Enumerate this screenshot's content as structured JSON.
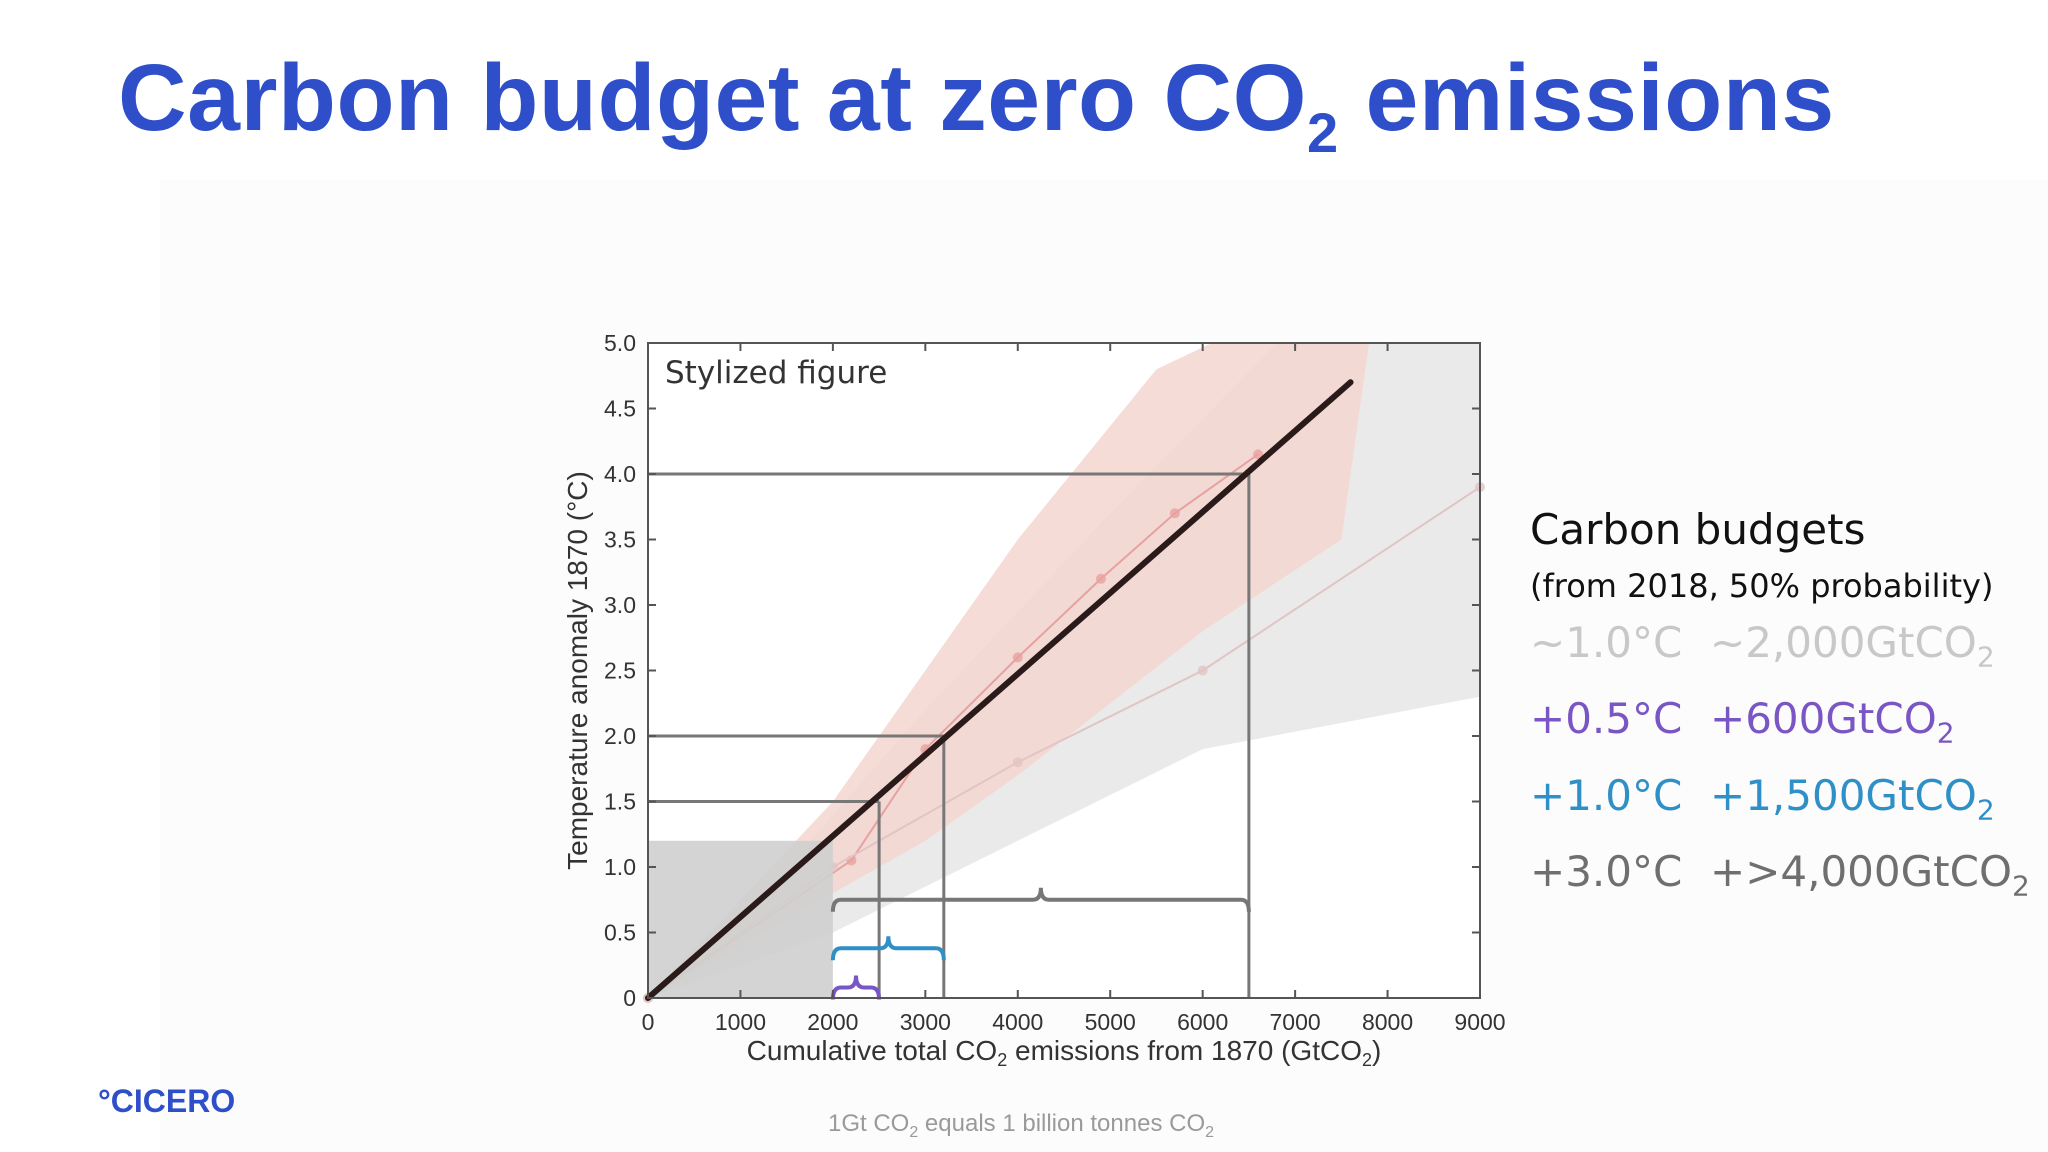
{
  "title": {
    "prefix": "Carbon budget at zero CO",
    "sub": "2",
    "suffix": " emissions"
  },
  "logo": "°CICERO",
  "footnote": {
    "a": "1Gt CO",
    "b": "2",
    "c": " equals 1 billion tonnes CO",
    "d": "2"
  },
  "legend": {
    "title": "Carbon budgets",
    "subtitle": "(from 2018, 50% probability)",
    "rows": [
      {
        "temp": "~1.0°C",
        "amount": "~2,000GtCO",
        "sub": "2",
        "color": "#c8c8c8"
      },
      {
        "temp": "+0.5°C",
        "amount": "+600GtCO",
        "sub": "2",
        "color": "#7a55c4"
      },
      {
        "temp": "+1.0°C",
        "amount": "+1,500GtCO",
        "sub": "2",
        "color": "#2f8fc7"
      },
      {
        "temp": "+3.0°C",
        "amount": "+>4,000GtCO",
        "sub": "2",
        "color": "#6f6f6f"
      }
    ]
  },
  "chart_data": {
    "type": "line",
    "annotation": "Stylized figure",
    "xlabel": {
      "a": "Cumulative total CO",
      "b": "2",
      "c": " emissions from 1870 (GtCO",
      "d": "2",
      "e": ")"
    },
    "ylabel": "Temperature anomaly 1870 (°C)",
    "xlim": [
      0,
      9000
    ],
    "ylim": [
      0,
      5
    ],
    "xticks": [
      0,
      1000,
      2000,
      3000,
      4000,
      5000,
      6000,
      7000,
      8000,
      9000
    ],
    "xtick_labels": [
      "0",
      "1000",
      "2000",
      "3000",
      "4000",
      "5000",
      "6000",
      "7000",
      "8000",
      "9000"
    ],
    "yticks": [
      0,
      0.5,
      1.0,
      1.5,
      2.0,
      2.5,
      3.0,
      3.5,
      4.0,
      4.5,
      5.0
    ],
    "ytick_labels": [
      "0",
      "0.5",
      "1.0",
      "1.5",
      "2.0",
      "2.5",
      "3.0",
      "3.5",
      "4.0",
      "4.5",
      "5.0"
    ],
    "series": [
      {
        "x": [
          0,
          7600
        ],
        "y": [
          0,
          4.7
        ],
        "color": "#2a1a1a"
      }
    ],
    "background_series": [
      {
        "x": [
          0,
          2200,
          3000,
          4000,
          4900,
          5700,
          6600
        ],
        "y": [
          0,
          1.05,
          1.9,
          2.6,
          3.2,
          3.7,
          4.15
        ],
        "color": "#e8a0a0"
      },
      {
        "x": [
          0,
          2000,
          4000,
          6000,
          9000
        ],
        "y": [
          0,
          1.0,
          1.8,
          2.5,
          3.9
        ],
        "color": "#e2c4c4"
      }
    ],
    "bands": [
      {
        "lower": [
          [
            0,
            0
          ],
          [
            2000,
            0.5
          ],
          [
            4000,
            1.2
          ],
          [
            6000,
            1.9
          ],
          [
            9000,
            2.3
          ]
        ],
        "upper": [
          [
            0,
            0
          ],
          [
            1500,
            1.0
          ],
          [
            3000,
            2.2
          ],
          [
            5000,
            3.7
          ],
          [
            6800,
            5.0
          ],
          [
            9000,
            5.0
          ]
        ],
        "color": "#e6e6e6"
      },
      {
        "lower": [
          [
            0,
            0
          ],
          [
            2000,
            0.8
          ],
          [
            3000,
            1.2
          ],
          [
            4000,
            1.7
          ],
          [
            6000,
            2.8
          ],
          [
            7500,
            3.5
          ]
        ],
        "upper": [
          [
            0,
            0
          ],
          [
            2000,
            1.5
          ],
          [
            3000,
            2.5
          ],
          [
            4000,
            3.5
          ],
          [
            5500,
            4.8
          ],
          [
            6100,
            5.0
          ],
          [
            7800,
            5.0
          ]
        ],
        "color": "#f4d6cf"
      }
    ],
    "shaded_region": {
      "x": [
        0,
        2000
      ],
      "y": [
        0,
        1.2
      ],
      "color": "#cfcfcf"
    },
    "reference_lines": [
      {
        "x": 2500,
        "y": 1.5,
        "color": "#777777"
      },
      {
        "x": 3200,
        "y": 2.0,
        "color": "#777777"
      },
      {
        "x": 6500,
        "y": 4.0,
        "color": "#777777"
      }
    ],
    "braces": [
      {
        "x0": 2000,
        "x1": 6500,
        "y": 0.75,
        "color": "#777777"
      },
      {
        "x0": 2000,
        "x1": 3200,
        "y": 0.38,
        "color": "#2f8fc7"
      },
      {
        "x0": 2000,
        "x1": 2500,
        "y": 0.08,
        "color": "#7a55c4"
      }
    ],
    "grid": false
  }
}
